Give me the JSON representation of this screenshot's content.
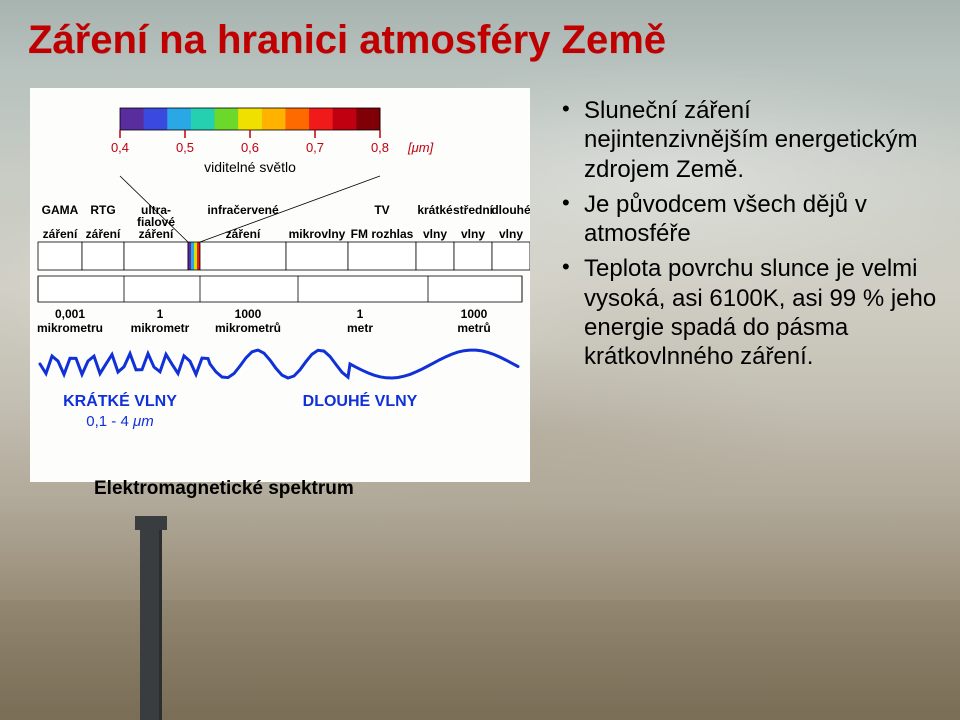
{
  "title": "Záření na hranici atmosféry Země",
  "caption": "Elektromagnetické spektrum",
  "bullets": [
    "Sluneční záření nejintenzivnějším energetickým zdrojem Země.",
    "Je původcem všech dějů v atmosféře",
    "Teplota povrchu slunce je velmi vysoká, asi 6100K, asi 99 % jeho energie spadá do pásma krátkovlnného záření."
  ],
  "diagram": {
    "visible_ticks": [
      "0,4",
      "0,5",
      "0,6",
      "0,7",
      "0,8"
    ],
    "visible_unit": "[μm]",
    "visible_label": "viditelné světlo",
    "band_colors": [
      "#5a2d9e",
      "#3a4ae0",
      "#2aa8e6",
      "#25d0b0",
      "#6cd82a",
      "#f0e000",
      "#ffb300",
      "#ff6a00",
      "#f01a1a",
      "#c00010",
      "#800008"
    ],
    "spectrum_bands": [
      {
        "label_top": "GAMA",
        "label_bot": "záření"
      },
      {
        "label_top": "RTG",
        "label_bot": "záření"
      },
      {
        "label_top": "ultra-",
        "label_mid": "fialové",
        "label_bot": "záření"
      },
      {
        "label_top": "infračervené",
        "label_bot": "záření"
      },
      {
        "label_top": "",
        "label_bot": "mikrovlny"
      },
      {
        "label_top": "TV",
        "label_bot": "FM rozhlas"
      },
      {
        "label_top": "krátké",
        "label_bot": "vlny"
      },
      {
        "label_top": "střední",
        "label_bot": "vlny"
      },
      {
        "label_top": "dlouhé",
        "label_bot": "vlny"
      }
    ],
    "length_scale": {
      "values": [
        "0,001",
        "1",
        "1000",
        "1",
        "1000"
      ],
      "units": [
        "mikrometru",
        "mikrometr",
        "mikrometrů",
        "metr",
        "metrů"
      ]
    },
    "wave_labels": {
      "short": "KRÁTKÉ VLNY",
      "long": "DLOUHÉ VLNY"
    },
    "short_range": "0,1 - 4",
    "short_range_unit": "μm",
    "colors": {
      "wave": "#1030d8",
      "wave_label": "#1030d8",
      "visible_ticks": "#c00010",
      "band_border": "#000000",
      "leader": "#000000",
      "bg": "#fdfdfc"
    }
  }
}
